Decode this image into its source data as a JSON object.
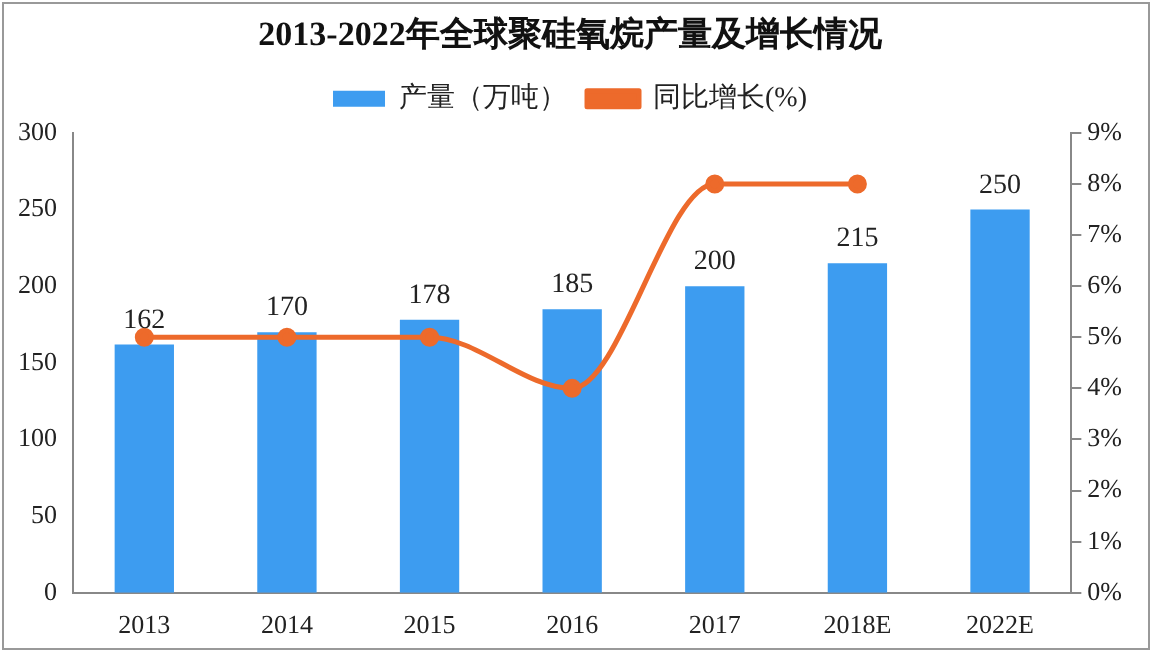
{
  "chart_data": {
    "type": "bar",
    "title": "2013-2022年全球聚硅氧烷产量及增长情况",
    "categories": [
      "2013",
      "2014",
      "2015",
      "2016",
      "2017",
      "2018E",
      "2022E"
    ],
    "series": [
      {
        "name": "产量（万吨）",
        "color": "#3d9cf0",
        "values": [
          162,
          170,
          178,
          185,
          200,
          215,
          250
        ],
        "value_labels": [
          "162",
          "170",
          "178",
          "185",
          "200",
          "215",
          "250"
        ]
      },
      {
        "name": "同比增长(%)",
        "type": "line",
        "axis": "y2",
        "color": "#ed6a2b",
        "marker": "circle",
        "values": [
          5,
          5,
          5,
          4,
          8,
          8,
          null
        ]
      }
    ],
    "ylim": [
      0,
      300
    ],
    "yticks": [
      0,
      50,
      100,
      150,
      200,
      250,
      300
    ],
    "y2lim": [
      0,
      9
    ],
    "y2ticks": [
      {
        "value": 0,
        "label": "0%"
      },
      {
        "value": 1,
        "label": "1%"
      },
      {
        "value": 2,
        "label": "2%"
      },
      {
        "value": 3,
        "label": "3%"
      },
      {
        "value": 4,
        "label": "4%"
      },
      {
        "value": 5,
        "label": "5%"
      },
      {
        "value": 6,
        "label": "6%"
      },
      {
        "value": 7,
        "label": "7%"
      },
      {
        "value": 8,
        "label": "8%"
      },
      {
        "value": 9,
        "label": "9%"
      }
    ],
    "grid": false,
    "legend": "top"
  }
}
